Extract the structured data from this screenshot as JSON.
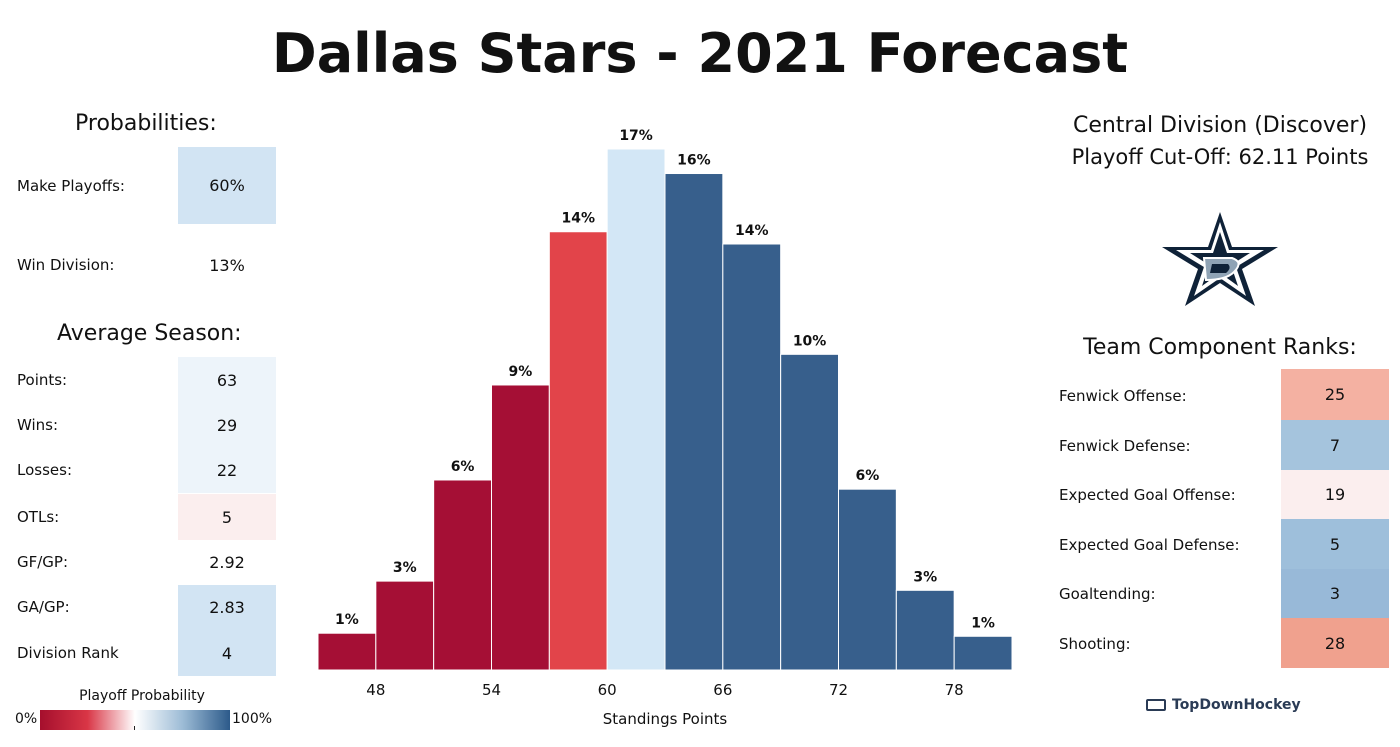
{
  "title": "Dallas Stars - 2021 Forecast",
  "probabilities": {
    "heading": "Probabilities:",
    "rows": [
      {
        "label": "Make Playoffs:",
        "value": "60%",
        "color": "#d2e4f3"
      },
      {
        "label": "Win Division:",
        "value": "13%",
        "color": "#ffffff"
      }
    ]
  },
  "average_season": {
    "heading": "Average Season:",
    "rows": [
      {
        "label": "Points:",
        "value": "63",
        "color": "#edf4fa"
      },
      {
        "label": "Wins:",
        "value": "29",
        "color": "#edf4fa"
      },
      {
        "label": "Losses:",
        "value": "22",
        "color": "#edf4fa"
      },
      {
        "label": "OTLs:",
        "value": "5",
        "color": "#fbeeee"
      },
      {
        "label": "GF/GP:",
        "value": "2.92",
        "color": "#ffffff"
      },
      {
        "label": "GA/GP:",
        "value": "2.83",
        "color": "#d2e4f3"
      },
      {
        "label": "Division Rank",
        "value": "4",
        "color": "#d2e4f3"
      }
    ]
  },
  "division": {
    "name": "Central Division (Discover)",
    "cutoff": "Playoff Cut-Off: 62.11 Points"
  },
  "team_logo": "dallas-stars-star-logo",
  "component_ranks": {
    "heading": "Team Component Ranks:",
    "rows": [
      {
        "label": "Fenwick Offense:",
        "value": "25",
        "color": "#f4b1a2"
      },
      {
        "label": "Fenwick Defense:",
        "value": "7",
        "color": "#a5c4dd"
      },
      {
        "label": "Expected Goal Offense:",
        "value": "19",
        "color": "#fbeeee"
      },
      {
        "label": "Expected Goal Defense:",
        "value": "5",
        "color": "#9ebfdb"
      },
      {
        "label": "Goaltending:",
        "value": "3",
        "color": "#98b9d8"
      },
      {
        "label": "Shooting:",
        "value": "28",
        "color": "#f0a18e"
      }
    ]
  },
  "legend": {
    "title": "Playoff Probability",
    "min_label": "0%",
    "max_label": "100%"
  },
  "brand": "TopDownHockey",
  "chart_data": {
    "type": "bar",
    "xlabel": "Standings Points",
    "ylabel": "",
    "bin_width": 3,
    "x_ticks": [
      48,
      54,
      60,
      66,
      72,
      78
    ],
    "ylim": [
      0,
      17
    ],
    "bins": [
      {
        "start": 45,
        "end": 48,
        "value": 1.2,
        "label": "1%",
        "color": "#a50f35"
      },
      {
        "start": 48,
        "end": 51,
        "value": 2.9,
        "label": "3%",
        "color": "#a50f35"
      },
      {
        "start": 51,
        "end": 54,
        "value": 6.2,
        "label": "6%",
        "color": "#a50f35"
      },
      {
        "start": 54,
        "end": 57,
        "value": 9.3,
        "label": "9%",
        "color": "#a50f35"
      },
      {
        "start": 57,
        "end": 60,
        "value": 14.3,
        "label": "14%",
        "color": "#e2444a"
      },
      {
        "start": 60,
        "end": 63,
        "value": 17.0,
        "label": "17%",
        "color": "#d3e7f6"
      },
      {
        "start": 63,
        "end": 66,
        "value": 16.2,
        "label": "16%",
        "color": "#375f8c"
      },
      {
        "start": 66,
        "end": 69,
        "value": 13.9,
        "label": "14%",
        "color": "#375f8c"
      },
      {
        "start": 69,
        "end": 72,
        "value": 10.3,
        "label": "10%",
        "color": "#375f8c"
      },
      {
        "start": 72,
        "end": 75,
        "value": 5.9,
        "label": "6%",
        "color": "#375f8c"
      },
      {
        "start": 75,
        "end": 78,
        "value": 2.6,
        "label": "3%",
        "color": "#375f8c"
      },
      {
        "start": 78,
        "end": 81,
        "value": 1.1,
        "label": "1%",
        "color": "#375f8c"
      }
    ]
  }
}
